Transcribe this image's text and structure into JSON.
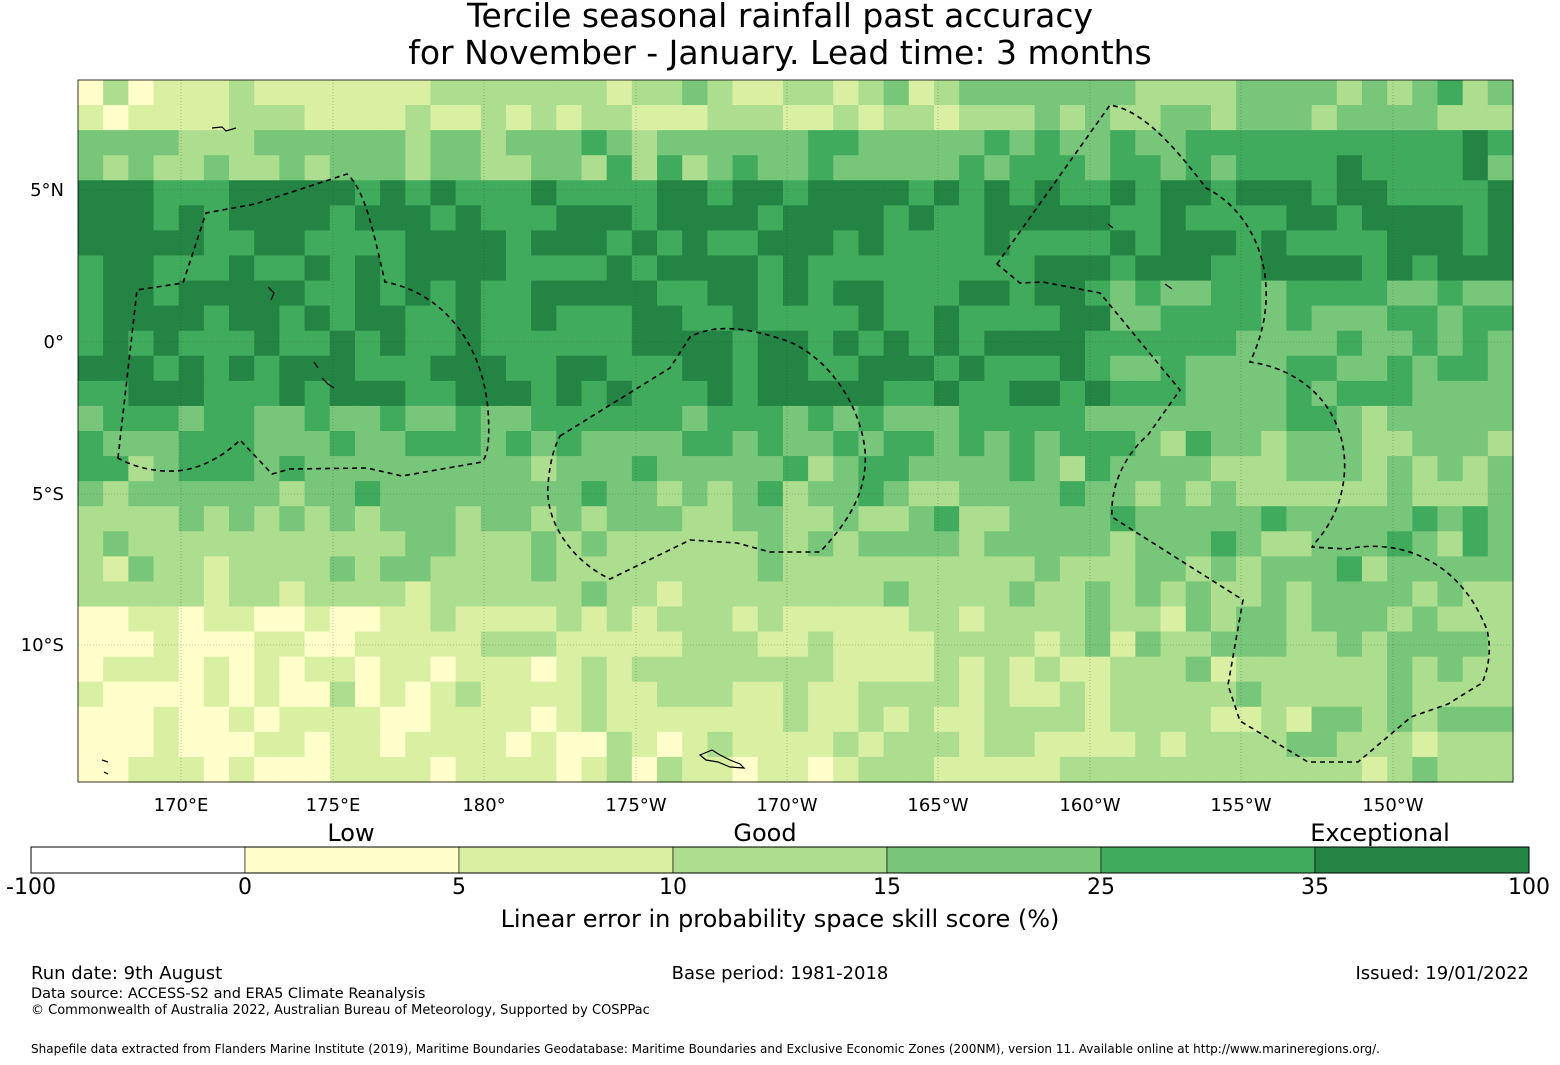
{
  "title": {
    "line1": "Tercile seasonal rainfall past accuracy",
    "line2": "for November - January. Lead time: 3 months"
  },
  "map": {
    "lat_labels": [
      "5°N",
      "0°",
      "5°S",
      "10°S"
    ],
    "lon_labels": [
      "170°E",
      "175°E",
      "180°",
      "175°W",
      "170°W",
      "165°W",
      "160°W",
      "155°W",
      "150°W"
    ],
    "eez_line_style": "dashed",
    "skill_palette": [
      "#ffffff",
      "#ffffcc",
      "#d9f0a3",
      "#addd8e",
      "#78c679",
      "#41ab5d",
      "#238443"
    ]
  },
  "colorbar": {
    "category_labels": [
      "Low",
      "Good",
      "Exceptional"
    ],
    "ticks": [
      "-100",
      "0",
      "5",
      "10",
      "15",
      "25",
      "35",
      "100"
    ],
    "colors": [
      "#ffffff",
      "#ffffcc",
      "#d9f0a3",
      "#addd8e",
      "#78c679",
      "#41ab5d",
      "#238443"
    ],
    "title": "Linear error in probability space skill score (%)"
  },
  "footer": {
    "run_date": "Run date: 9th August",
    "base_period": "Base period: 1981-2018",
    "issued": "Issued: 19/01/2022",
    "data_source": "Data source: ACCESS-S2 and ERA5 Climate Reanalysis",
    "copyright": "© Commonwealth of Australia 2022, Australian Bureau of Meteorology, Supported by COSPPac",
    "shapefile": "Shapefile data extracted from Flanders Marine Institute (2019), Maritime Boundaries Geodatabase: Maritime Boundaries and Exclusive Economic Zones (200NM), version 11. Available online at http://www.marineregions.org/."
  }
}
